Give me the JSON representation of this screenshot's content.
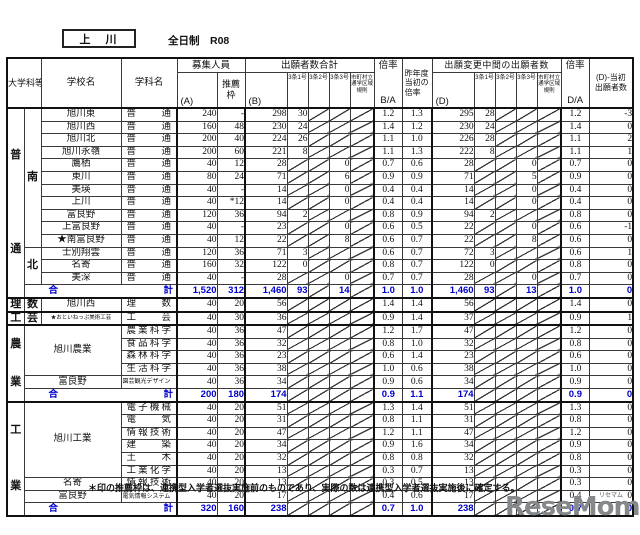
{
  "page": {
    "title": "上　川",
    "subtitle": "全日制　R08",
    "footnote": "＊印の推薦枠は、連携型入学者選抜実施前のものであり、実際の数は連携型入学者選抜実施後に確定する。",
    "logo": {
      "text": "ReseMom.",
      "ruby": "リセマム"
    }
  },
  "colors": {
    "total_blue": "#0000cc",
    "grid_line": "#3a3a3a",
    "logo_gray": "#85898c"
  },
  "header": {
    "col_group": "大学科等",
    "school": "学校名",
    "dept": "学科名",
    "recruit_group": "募集人員",
    "a": "(A)",
    "suisen": "推薦\n枠",
    "b_group": "出願者数合計",
    "b": "(B)",
    "jo1": "3条1号",
    "jo2": "3条2号",
    "jo3": "3条3号",
    "rule": "市町村立\n通学区域\n規則",
    "rate": "倍率",
    "ba": "B/A",
    "prev": "昨年度\n当初の\n倍率",
    "d_group": "出願変更中間の出願者数",
    "d": "(D)",
    "da": "D/A",
    "diff": "(D)-当初\n出願者数"
  },
  "table": {
    "total_left": "合",
    "total_right": "計",
    "rows": [
      {
        "lead": [
          {
            "t": "普通",
            "rs": 15,
            "vert": true,
            "k": "c1"
          },
          {
            "t": "南",
            "rs": 11,
            "k": "c2"
          },
          {
            "t": "旭川東",
            "k": "school"
          },
          {
            "t": "普通",
            "k": "dept"
          }
        ],
        "nums": [
          "240",
          "-",
          "298",
          "30",
          null,
          null,
          null,
          "1.2",
          "1.3",
          "295",
          "28",
          null,
          null,
          null,
          "1.2",
          "-3"
        ]
      },
      {
        "lead": [
          {
            "t": "旭川西",
            "k": "school"
          },
          {
            "t": "普通",
            "k": "dept"
          }
        ],
        "nums": [
          "160",
          "48",
          "230",
          "24",
          null,
          null,
          null,
          "1.4",
          "1.2",
          "230",
          "24",
          null,
          null,
          null,
          "1.4",
          "0"
        ]
      },
      {
        "lead": [
          {
            "t": "旭川北",
            "k": "school"
          },
          {
            "t": "普通",
            "k": "dept"
          }
        ],
        "nums": [
          "200",
          "40",
          "224",
          "26",
          null,
          null,
          null,
          "1.1",
          "1.0",
          "226",
          "28",
          null,
          null,
          null,
          "1.1",
          "2"
        ]
      },
      {
        "lead": [
          {
            "t": "旭川永嶺",
            "k": "school"
          },
          {
            "t": "普通",
            "k": "dept"
          }
        ],
        "nums": [
          "200",
          "60",
          "221",
          "8",
          null,
          null,
          null,
          "1.1",
          "1.3",
          "222",
          "8",
          null,
          null,
          null,
          "1.1",
          "1"
        ]
      },
      {
        "lead": [
          {
            "t": "鷹栖",
            "k": "school"
          },
          {
            "t": "普通",
            "k": "dept"
          }
        ],
        "nums": [
          "40",
          "12",
          "28",
          null,
          null,
          "0",
          null,
          "0.7",
          "0.6",
          "28",
          null,
          null,
          "0",
          null,
          "0.7",
          "0"
        ]
      },
      {
        "lead": [
          {
            "t": "東川",
            "k": "school"
          },
          {
            "t": "普通",
            "k": "dept"
          }
        ],
        "nums": [
          "80",
          "24",
          "71",
          null,
          null,
          "6",
          null,
          "0.9",
          "0.9",
          "71",
          null,
          null,
          "5",
          null,
          "0.9",
          "0"
        ]
      },
      {
        "lead": [
          {
            "t": "美瑛",
            "k": "school"
          },
          {
            "t": "普通",
            "k": "dept"
          }
        ],
        "nums": [
          "40",
          "-",
          "14",
          null,
          null,
          "0",
          null,
          "0.4",
          "0.4",
          "14",
          null,
          null,
          "0",
          null,
          "0.4",
          "0"
        ]
      },
      {
        "lead": [
          {
            "t": "上川",
            "k": "school"
          },
          {
            "t": "普通",
            "k": "dept"
          }
        ],
        "nums": [
          "40",
          "*12",
          "14",
          null,
          null,
          "0",
          null,
          "0.4",
          "0.4",
          "14",
          null,
          null,
          "0",
          null,
          "0.4",
          "0"
        ]
      },
      {
        "lead": [
          {
            "t": "富良野",
            "k": "school"
          },
          {
            "t": "普通",
            "k": "dept"
          }
        ],
        "nums": [
          "120",
          "36",
          "94",
          "2",
          null,
          null,
          null,
          "0.8",
          "0.9",
          "94",
          "2",
          null,
          null,
          null,
          "0.8",
          "0"
        ]
      },
      {
        "lead": [
          {
            "t": "上富良野",
            "k": "school"
          },
          {
            "t": "普通",
            "k": "dept"
          }
        ],
        "nums": [
          "40",
          "-",
          "23",
          null,
          null,
          "0",
          null,
          "0.6",
          "0.5",
          "22",
          null,
          null,
          "0",
          null,
          "0.6",
          "-1"
        ]
      },
      {
        "lead": [
          {
            "t": "★南富良野",
            "k": "school"
          },
          {
            "t": "普通",
            "k": "dept"
          }
        ],
        "nums": [
          "40",
          "12",
          "22",
          null,
          null,
          "8",
          null,
          "0.6",
          "0.7",
          "22",
          null,
          null,
          "8",
          null,
          "0.6",
          "0"
        ]
      },
      {
        "lead": [
          {
            "t": "北",
            "rs": 3,
            "k": "c2"
          },
          {
            "t": "士別翔雲",
            "k": "school"
          },
          {
            "t": "普通",
            "k": "dept"
          }
        ],
        "nums": [
          "120",
          "36",
          "71",
          "3",
          null,
          null,
          null,
          "0.6",
          "0.7",
          "72",
          "3",
          null,
          null,
          null,
          "0.6",
          "1"
        ]
      },
      {
        "lead": [
          {
            "t": "名寄",
            "k": "school"
          },
          {
            "t": "普通",
            "k": "dept"
          }
        ],
        "nums": [
          "160",
          "32",
          "122",
          "0",
          null,
          null,
          null,
          "0.8",
          "0.7",
          "122",
          "0",
          null,
          null,
          null,
          "0.8",
          "0"
        ]
      },
      {
        "lead": [
          {
            "t": "美深",
            "k": "school"
          },
          {
            "t": "普通",
            "k": "dept"
          }
        ],
        "nums": [
          "40",
          "-",
          "28",
          null,
          null,
          "0",
          null,
          "0.7",
          "0.7",
          "28",
          null,
          null,
          "0",
          null,
          "0.7",
          "0"
        ]
      },
      {
        "total": true,
        "cls": "sec-end",
        "lead": [
          {
            "total_label": true,
            "cs": 3,
            "k": "tlabel"
          }
        ],
        "nums": [
          "1,520",
          "312",
          "1,460",
          "93",
          null,
          "14",
          null,
          "1.0",
          "1.0",
          "1,460",
          "93",
          null,
          "13",
          null,
          "1.0",
          "0"
        ]
      },
      {
        "cls": "sec-start sec-end",
        "lead": [
          {
            "t": "理",
            "k": "c1"
          },
          {
            "t": "数",
            "k": "c2"
          },
          {
            "t": "旭川西",
            "k": "school"
          },
          {
            "t": "理数",
            "k": "dept"
          }
        ],
        "nums": [
          "40",
          "20",
          "56",
          null,
          null,
          null,
          null,
          "1.4",
          "1.4",
          "56",
          null,
          null,
          null,
          null,
          "1.4",
          "0"
        ]
      },
      {
        "cls": "sec-start sec-end",
        "lead": [
          {
            "t": "工",
            "k": "c1"
          },
          {
            "t": "芸",
            "k": "c2"
          },
          {
            "t": "★おといねっぷ美術工芸",
            "k": "school",
            "sm": true
          },
          {
            "t": "工芸",
            "k": "dept"
          }
        ],
        "nums": [
          "40",
          "30",
          "36",
          null,
          null,
          null,
          null,
          "0.9",
          "1.4",
          "37",
          null,
          null,
          null,
          null,
          "0.9",
          "1"
        ]
      },
      {
        "cls": "sec-start",
        "lead": [
          {
            "t": "農業",
            "rs": 6,
            "vert": true,
            "k": "c1"
          },
          {
            "t": "旭川農業",
            "rs": 4,
            "cs": 2,
            "k": "school"
          },
          {
            "t": "農業科学",
            "k": "dept"
          }
        ],
        "nums": [
          "40",
          "36",
          "47",
          null,
          null,
          null,
          null,
          "1.2",
          "1.7",
          "47",
          null,
          null,
          null,
          null,
          "1.2",
          "0"
        ]
      },
      {
        "lead": [
          {
            "t": "食品科学",
            "k": "dept"
          }
        ],
        "nums": [
          "40",
          "36",
          "32",
          null,
          null,
          null,
          null,
          "0.8",
          "1.0",
          "32",
          null,
          null,
          null,
          null,
          "0.8",
          "0"
        ]
      },
      {
        "lead": [
          {
            "t": "森林科学",
            "k": "dept"
          }
        ],
        "nums": [
          "40",
          "36",
          "23",
          null,
          null,
          null,
          null,
          "0.6",
          "1.4",
          "23",
          null,
          null,
          null,
          null,
          "0.6",
          "0"
        ]
      },
      {
        "lead": [
          {
            "t": "生活科学",
            "k": "dept"
          }
        ],
        "nums": [
          "40",
          "36",
          "38",
          null,
          null,
          null,
          null,
          "1.0",
          "0.6",
          "38",
          null,
          null,
          null,
          null,
          "1.0",
          "0"
        ]
      },
      {
        "lead": [
          {
            "t": "富良野",
            "cs": 2,
            "k": "school"
          },
          {
            "t": "園芸観光デザイン",
            "k": "dept",
            "sm": true
          }
        ],
        "nums": [
          "40",
          "36",
          "34",
          null,
          null,
          null,
          null,
          "0.9",
          "0.6",
          "34",
          null,
          null,
          null,
          null,
          "0.9",
          "0"
        ]
      },
      {
        "total": true,
        "cls": "sec-end",
        "lead": [
          {
            "total_label": true,
            "cs": 3,
            "k": "tlabel"
          }
        ],
        "nums": [
          "200",
          "180",
          "174",
          null,
          null,
          null,
          null,
          "0.9",
          "1.1",
          "174",
          null,
          null,
          null,
          null,
          "0.9",
          "0"
        ]
      },
      {
        "cls": "sec-start",
        "lead": [
          {
            "t": "工業",
            "rs": 9,
            "vert": true,
            "k": "c1"
          },
          {
            "t": "旭川工業",
            "rs": 6,
            "cs": 2,
            "k": "school"
          },
          {
            "t": "電子機械",
            "k": "dept"
          }
        ],
        "nums": [
          "40",
          "20",
          "51",
          null,
          null,
          null,
          null,
          "1.3",
          "1.4",
          "51",
          null,
          null,
          null,
          null,
          "1.3",
          "0"
        ]
      },
      {
        "lead": [
          {
            "t": "電気",
            "k": "dept"
          }
        ],
        "nums": [
          "40",
          "20",
          "31",
          null,
          null,
          null,
          null,
          "0.8",
          "1.1",
          "31",
          null,
          null,
          null,
          null,
          "0.8",
          "0"
        ]
      },
      {
        "lead": [
          {
            "t": "情報技術",
            "k": "dept"
          }
        ],
        "nums": [
          "40",
          "20",
          "47",
          null,
          null,
          null,
          null,
          "1.2",
          "1.1",
          "47",
          null,
          null,
          null,
          null,
          "1.2",
          "0"
        ]
      },
      {
        "lead": [
          {
            "t": "建築",
            "k": "dept"
          }
        ],
        "nums": [
          "40",
          "20",
          "34",
          null,
          null,
          null,
          null,
          "0.9",
          "1.6",
          "34",
          null,
          null,
          null,
          null,
          "0.9",
          "0"
        ]
      },
      {
        "lead": [
          {
            "t": "土木",
            "k": "dept"
          }
        ],
        "nums": [
          "40",
          "20",
          "32",
          null,
          null,
          null,
          null,
          "0.8",
          "0.8",
          "32",
          null,
          null,
          null,
          null,
          "0.8",
          "0"
        ]
      },
      {
        "lead": [
          {
            "t": "工業化学",
            "k": "dept"
          }
        ],
        "nums": [
          "40",
          "20",
          "13",
          null,
          null,
          null,
          null,
          "0.3",
          "0.7",
          "13",
          null,
          null,
          null,
          null,
          "0.3",
          "0"
        ]
      },
      {
        "lead": [
          {
            "t": "名寄",
            "cs": 2,
            "k": "school"
          },
          {
            "t": "情報技術",
            "k": "dept"
          }
        ],
        "nums": [
          "40",
          "20",
          "13",
          null,
          null,
          null,
          null,
          "0.3",
          "0.5",
          "13",
          null,
          null,
          null,
          null,
          "0.3",
          "0"
        ]
      },
      {
        "lead": [
          {
            "t": "富良野",
            "cs": 2,
            "k": "school"
          },
          {
            "t": "電気情報システム",
            "k": "dept",
            "sm": true
          }
        ],
        "nums": [
          "40",
          "20",
          "17",
          null,
          null,
          null,
          null,
          "0.4",
          "0.6",
          "17",
          null,
          null,
          null,
          null,
          "0.4",
          "0"
        ]
      },
      {
        "total": true,
        "cls": "sec-end",
        "lead": [
          {
            "total_label": true,
            "cs": 3,
            "k": "tlabel"
          }
        ],
        "nums": [
          "320",
          "160",
          "238",
          null,
          null,
          null,
          null,
          "0.7",
          "1.0",
          "238",
          null,
          null,
          null,
          null,
          "0.7",
          "0"
        ]
      }
    ]
  }
}
